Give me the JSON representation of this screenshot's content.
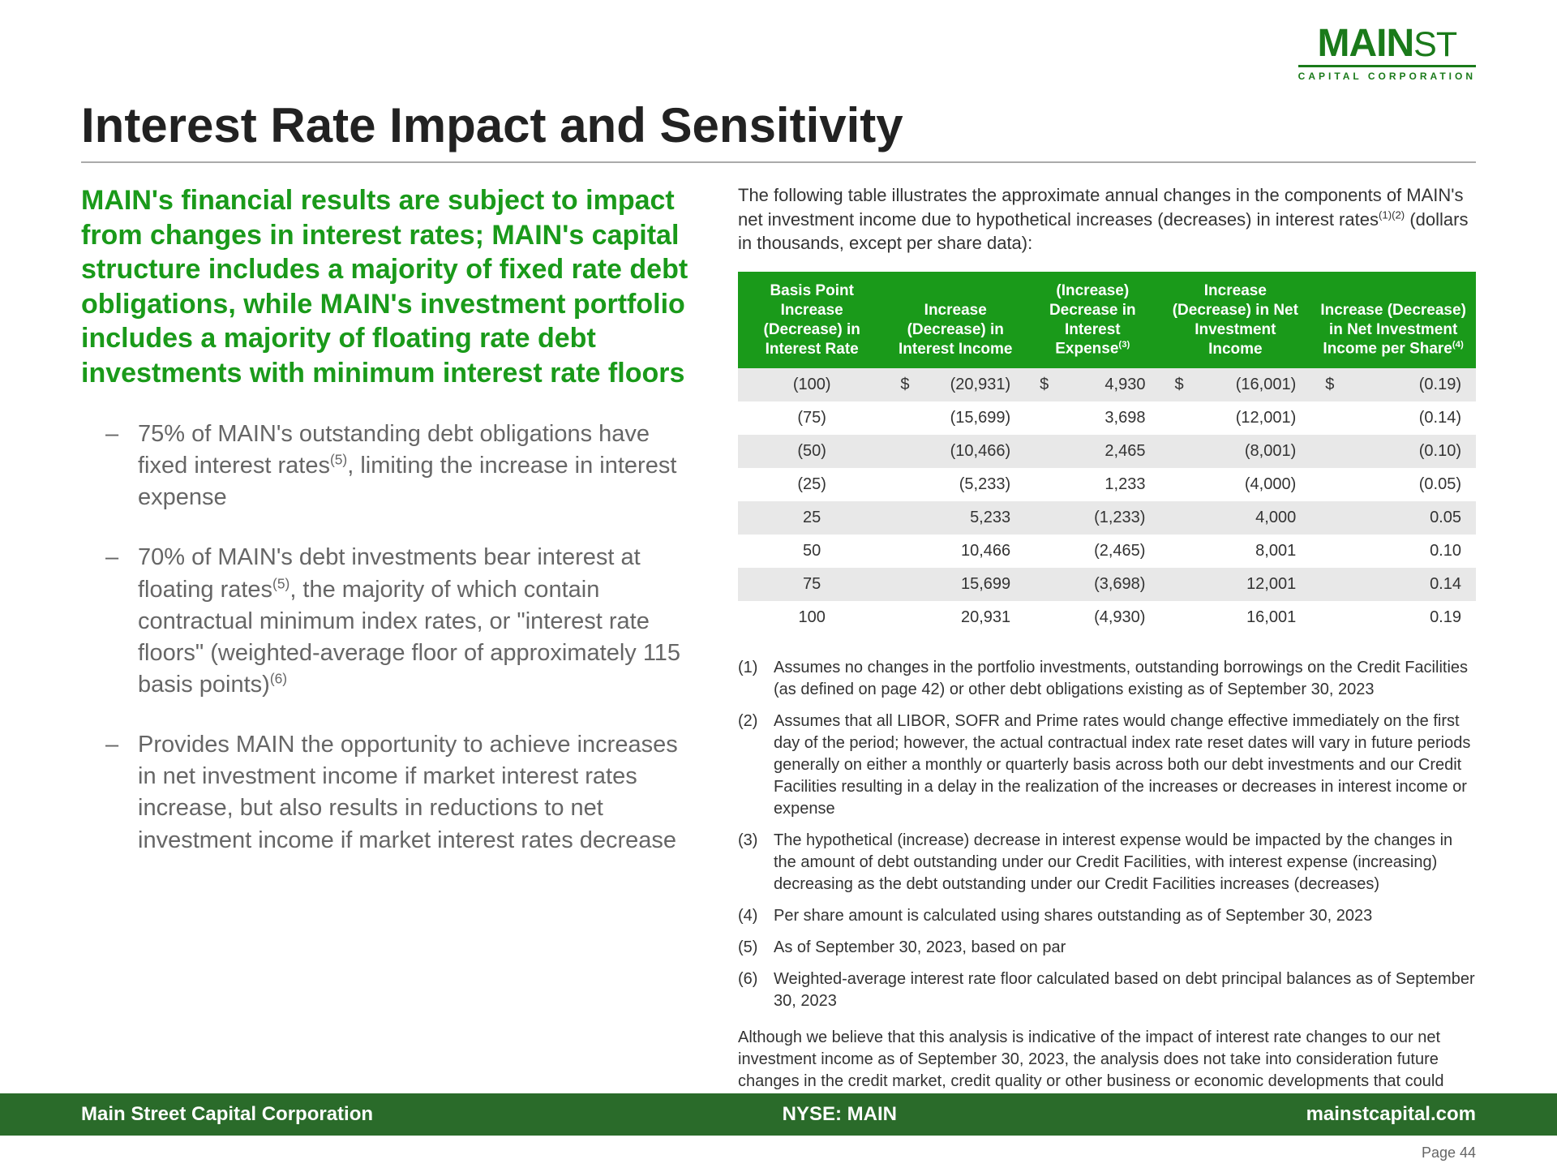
{
  "logo": {
    "line1a": "MAIN",
    "line1b": "ST",
    "line2": "CAPITAL CORPORATION"
  },
  "title": "Interest Rate Impact and Sensitivity",
  "intro": "MAIN's financial results are subject to impact from changes in interest rates; MAIN's capital structure includes a majority of fixed rate debt obligations, while MAIN's investment portfolio includes a majority of floating rate debt investments with minimum interest rate floors",
  "bullets": [
    "75% of MAIN's outstanding debt obligations have fixed interest rates<sup>(5)</sup>, limiting the increase in interest expense",
    "70% of MAIN's debt investments bear interest at floating rates<sup>(5)</sup>, the majority of which contain contractual minimum index rates, or \"interest rate floors\" (weighted-average floor of approximately 115 basis points)<sup>(6)</sup>",
    "Provides MAIN the opportunity to achieve increases in net investment income if market interest rates increase, but also results in reductions to net investment income if market interest rates decrease"
  ],
  "table_intro": "The following table illustrates the approximate annual changes in the components of MAIN's net investment income due to hypothetical increases (decreases) in interest rates<sup>(1)(2)</sup> (dollars in thousands, except per share data):",
  "table": {
    "headers": [
      "Basis Point Increase (Decrease) in Interest Rate",
      "Increase (Decrease) in Interest Income",
      "(Increase) Decrease in Interest Expense<sup>(3)</sup>",
      "Increase (Decrease) in Net Investment Income",
      "Increase (Decrease) in Net Investment Income per Share<sup>(4)</sup>"
    ],
    "rows": [
      {
        "shade": true,
        "dollar": true,
        "c": [
          "(100)",
          "(20,931)",
          "4,930",
          "(16,001)",
          "(0.19)"
        ]
      },
      {
        "shade": false,
        "dollar": false,
        "c": [
          "(75)",
          "(15,699)",
          "3,698",
          "(12,001)",
          "(0.14)"
        ]
      },
      {
        "shade": true,
        "dollar": false,
        "c": [
          "(50)",
          "(10,466)",
          "2,465",
          "(8,001)",
          "(0.10)"
        ]
      },
      {
        "shade": false,
        "dollar": false,
        "c": [
          "(25)",
          "(5,233)",
          "1,233",
          "(4,000)",
          "(0.05)"
        ]
      },
      {
        "shade": true,
        "dollar": false,
        "c": [
          "25",
          "5,233",
          "(1,233)",
          "4,000",
          "0.05"
        ]
      },
      {
        "shade": false,
        "dollar": false,
        "c": [
          "50",
          "10,466",
          "(2,465)",
          "8,001",
          "0.10"
        ]
      },
      {
        "shade": true,
        "dollar": false,
        "c": [
          "75",
          "15,699",
          "(3,698)",
          "12,001",
          "0.14"
        ]
      },
      {
        "shade": false,
        "dollar": false,
        "c": [
          "100",
          "20,931",
          "(4,930)",
          "16,001",
          "0.19"
        ]
      }
    ]
  },
  "footnotes": [
    "Assumes no changes in the portfolio investments, outstanding borrowings on the Credit Facilities (as defined on page 42) or other debt obligations existing as of September 30, 2023",
    "Assumes that all LIBOR, SOFR and Prime rates would change effective immediately on the first day of the period; however, the actual contractual index rate reset dates will vary in future periods generally on either a monthly or quarterly basis across both our debt investments and our Credit Facilities resulting in a delay in the realization of the increases or decreases in interest income or expense",
    "The hypothetical (increase) decrease in interest expense would be impacted by the changes in the amount of debt outstanding under our Credit Facilities, with interest expense (increasing) decreasing as the debt outstanding under our Credit Facilities increases (decreases)",
    "Per share amount is calculated using shares outstanding as of September 30, 2023",
    "As of September 30, 2023, based on par",
    "Weighted-average interest rate floor calculated based on debt principal balances as of September 30, 2023"
  ],
  "closing": "Although we believe that this analysis is indicative of the impact of interest rate changes to our net investment income as of September 30, 2023, the analysis does not take into consideration future changes in the credit market, credit quality or other business or economic developments that could affect our net investment income. Accordingly, we can offer no assurances that actual results would not differ materially from the analysis above.",
  "footer": {
    "left": "Main Street Capital Corporation",
    "center": "NYSE: MAIN",
    "right": "mainstcapital.com"
  },
  "page_num": "Page  44"
}
